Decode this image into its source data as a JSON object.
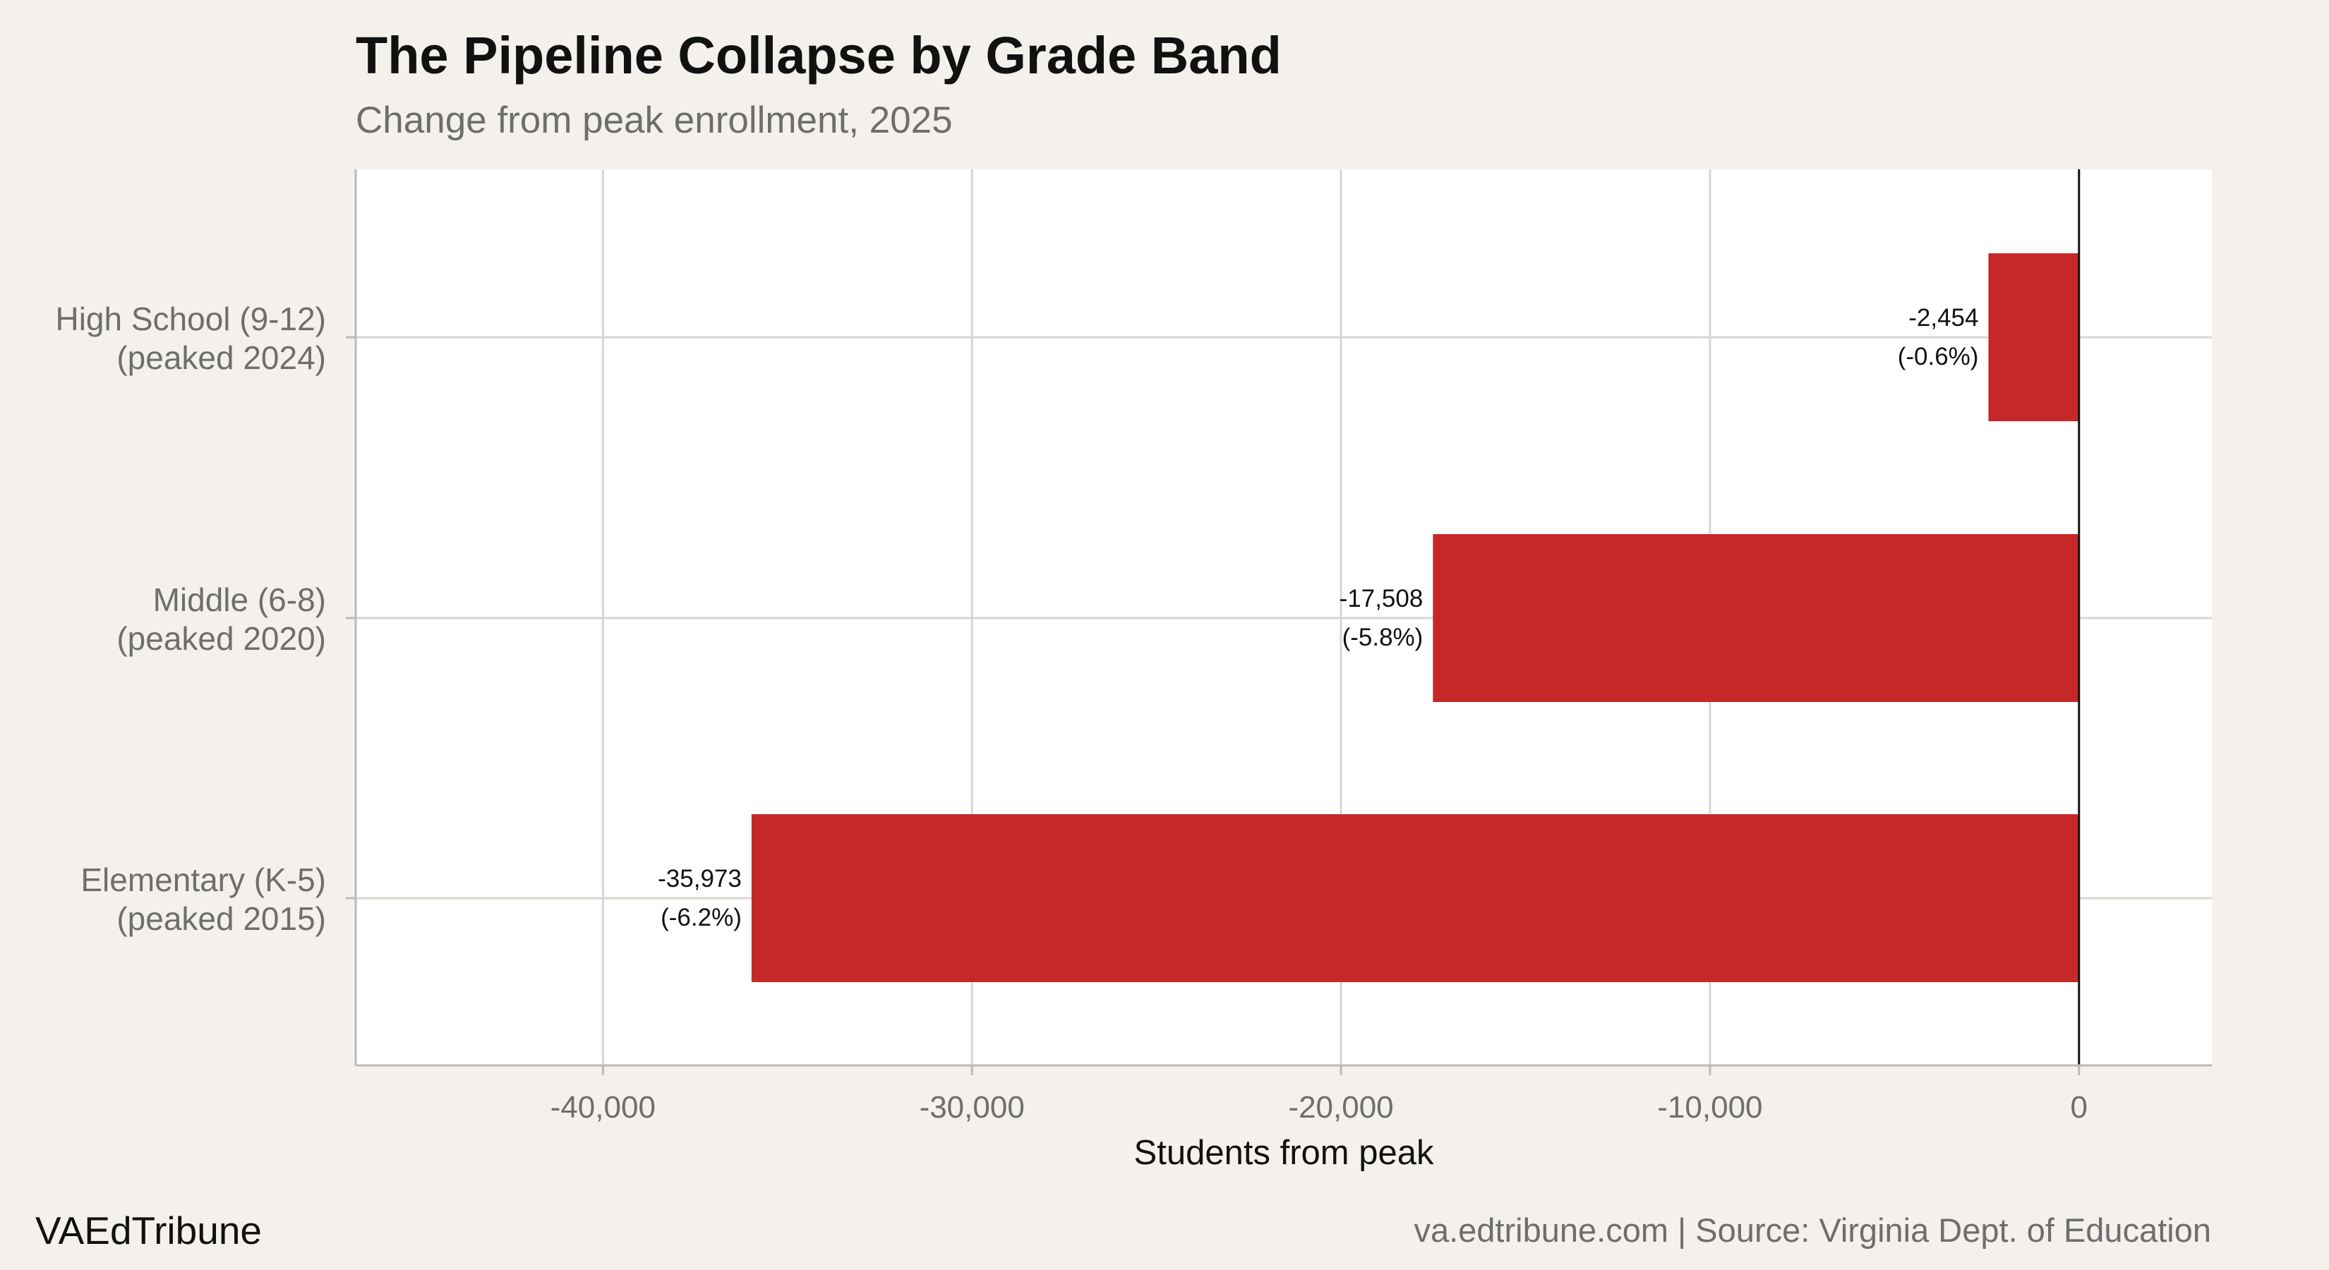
{
  "header": {
    "title": "The Pipeline Collapse by Grade Band",
    "subtitle": "Change from peak enrollment, 2025"
  },
  "footer": {
    "brand": "VAEdTribune",
    "source": "va.edtribune.com | Source: Virginia Dept. of Education"
  },
  "colors": {
    "bar": "#c62828",
    "background": "#f4f1ec",
    "panel": "#ffffff",
    "grid": "#d9d6d1"
  },
  "chart_data": {
    "type": "bar",
    "orientation": "horizontal",
    "title": "The Pipeline Collapse by Grade Band",
    "subtitle": "Change from peak enrollment, 2025",
    "xlabel": "Students from peak",
    "ylabel": "",
    "xlim": [
      -46700,
      3600
    ],
    "xticks": [
      -40000,
      -30000,
      -20000,
      -10000,
      0
    ],
    "xtick_labels": [
      "-40,000",
      "-30,000",
      "-20,000",
      "-10,000",
      "0"
    ],
    "grid": true,
    "categories": [
      [
        "High School (9-12)",
        "(peaked 2024)"
      ],
      [
        "Middle (6-8)",
        "(peaked 2020)"
      ],
      [
        "Elementary (K-5)",
        "(peaked 2015)"
      ]
    ],
    "values": [
      -2454,
      -17508,
      -35973
    ],
    "data_labels": [
      [
        "-2,454",
        "(-0.6%)"
      ],
      [
        "-17,508",
        "(-5.8%)"
      ],
      [
        "-35,973",
        "(-6.2%)"
      ]
    ]
  }
}
